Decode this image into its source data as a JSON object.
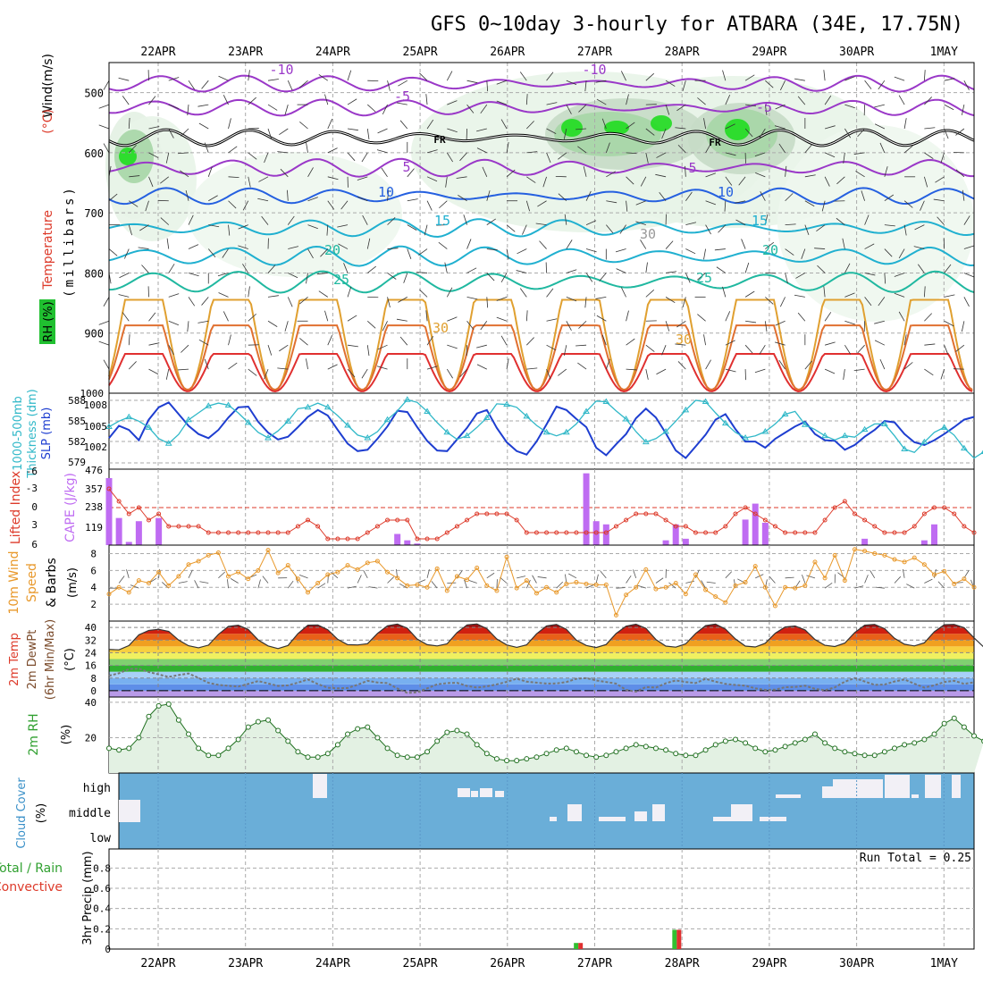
{
  "title": "GFS 0~10day 3-hourly for ATBARA (34E, 17.75N)",
  "dates": [
    "22APR",
    "23APR",
    "24APR",
    "25APR",
    "26APR",
    "27APR",
    "28APR",
    "29APR",
    "30APR",
    "1MAY"
  ],
  "colors": {
    "wind_label": "#000000",
    "temp_label": "#dd3a2a",
    "rh_label": "#20c030",
    "bar_purple": "#bf6cf2",
    "lifted_red": "#dd3a2a",
    "orange": "#e8982a",
    "blue": "#1e3ed0",
    "cyan": "#30b8c8",
    "green": "#30a030",
    "cloud_blue": "#6aaed8",
    "cloud_white": "#f2f0f6",
    "pressure_purple": "#9a38c8",
    "contour_blue": "#2560e0",
    "contour_cyan": "#20b0d0",
    "contour_teal": "#20b8a0",
    "contour_orange": "#e0a030",
    "contour_red": "#e03030"
  },
  "chart_data": [
    {
      "id": "upper-air",
      "type": "contour",
      "ylabel_parts": [
        "Wind",
        "(m/s)",
        "(°C)",
        "Temperature",
        "RH (%)",
        "(millibars)"
      ],
      "y_ticks": [
        500,
        600,
        700,
        800,
        900,
        1000
      ],
      "ylim": [
        1000,
        450
      ],
      "isotherm_labels": [
        "-10",
        "-10",
        "-5",
        "-5",
        "5",
        "5",
        "10",
        "10",
        "15",
        "15",
        "20",
        "20",
        "25",
        "25",
        "30",
        "30",
        "30",
        "FR",
        "FR"
      ]
    },
    {
      "id": "thickness-slp",
      "type": "line",
      "ylabel_left": "1000-500mb Thickness (dm)",
      "ylabel_right": "SLP (mb)",
      "left_ticks": [
        "588",
        "585",
        "582",
        "579"
      ],
      "right_ticks": [
        "1008",
        "1005",
        "1002"
      ],
      "series": [
        {
          "name": "SLP (mb)",
          "values": [
            1003.4,
            1005.2,
            1004.6,
            1003.1,
            1006.1,
            1007.9,
            1008.6,
            1006.9,
            1005.2,
            1004.0,
            1003.4,
            1004.6,
            1006.4,
            1007.9,
            1008.0,
            1005.8,
            1004.2,
            1003.2,
            1003.6,
            1005.0,
            1006.5,
            1007.5,
            1006.7,
            1004.6,
            1002.6,
            1001.5,
            1001.7,
            1003.3,
            1005.1,
            1007.4,
            1007.2,
            1005.0,
            1003.0,
            1001.6,
            1001.5,
            1003.2,
            1004.9,
            1007.0,
            1007.5,
            1004.9,
            1002.8,
            1001.5,
            1001.0,
            1002.9,
            1005.4,
            1008.0,
            1007.5,
            1006.2,
            1005.0,
            1002.0,
            1000.9,
            1002.5,
            1004.0,
            1006.3,
            1007.7,
            1006.4,
            1004.1,
            1001.6,
            1000.5,
            1002.2,
            1003.9,
            1006.1,
            1006.9,
            1004.7,
            1002.9,
            1002.9,
            1002.0,
            1003.3,
            1004.2,
            1005.1,
            1005.8,
            1004.0,
            1003.1,
            1003.0,
            1001.7,
            1002.4,
            1003.6,
            1004.6,
            1005.9,
            1005.7,
            1004.0,
            1002.8,
            1002.4,
            1003.1,
            1004.0,
            1005.0,
            1006.1,
            1006.5
          ]
        },
        {
          "name": "Thickness (dm)",
          "values": [
            584.2,
            585.0,
            585.6,
            585.0,
            584.1,
            582.5,
            581.8,
            583.1,
            585.2,
            586.2,
            587.2,
            587.6,
            587.3,
            586.2,
            584.8,
            583.4,
            582.6,
            583.6,
            585.0,
            586.8,
            587.0,
            587.6,
            587.0,
            585.8,
            584.4,
            583.0,
            582.6,
            583.5,
            585.2,
            586.5,
            588.1,
            587.7,
            586.4,
            584.8,
            583.4,
            582.4,
            582.9,
            584.1,
            585.5,
            587.5,
            587.4,
            587.0,
            585.7,
            584.4,
            583.4,
            582.9,
            583.4,
            584.6,
            586.4,
            587.9,
            587.8,
            586.5,
            585.3,
            583.5,
            582.0,
            582.5,
            583.5,
            585.0,
            586.6,
            588.0,
            587.8,
            586.2,
            584.7,
            583.4,
            582.6,
            582.9,
            583.5,
            584.6,
            586.0,
            586.4,
            584.5,
            583.8,
            582.9,
            582.3,
            582.9,
            582.7,
            583.8,
            584.6,
            584.6,
            582.9,
            581.0,
            580.5,
            582.0,
            583.4,
            584.1,
            583.0,
            581.1,
            579.7,
            580.6
          ]
        }
      ]
    },
    {
      "id": "cape-li",
      "type": "bar+line",
      "ylabel_left": "Lifted Index",
      "ylabel_right": "CAPE (J/kg)",
      "left_ticks": [
        "-6",
        "-3",
        "0",
        "3",
        "6"
      ],
      "right_ticks": [
        "476",
        "357",
        "238",
        "119"
      ],
      "cape": [
        420,
        170,
        20,
        150,
        0,
        170,
        0,
        0,
        0,
        0,
        0,
        0,
        0,
        0,
        0,
        0,
        0,
        0,
        0,
        0,
        0,
        0,
        0,
        0,
        0,
        0,
        0,
        0,
        0,
        70,
        30,
        10,
        0,
        0,
        0,
        0,
        0,
        0,
        0,
        0,
        0,
        0,
        0,
        0,
        0,
        0,
        0,
        0,
        0,
        0,
        0,
        0,
        0,
        0,
        0,
        0,
        0,
        0,
        0,
        0,
        0,
        0,
        0,
        0,
        0,
        0,
        0,
        0,
        0,
        0,
        0,
        0,
        0,
        0,
        0,
        0,
        0,
        0,
        0,
        0,
        0,
        0,
        0,
        0,
        0,
        0,
        0,
        0
      ],
      "cape_extra": {
        "index": [
          "48",
          "49",
          "50",
          "51",
          "55",
          "56",
          "57",
          "58",
          "64",
          "65",
          "66",
          "67",
          "68",
          "75",
          "76",
          "82",
          "83"
        ],
        "value": [
          450,
          150,
          130,
          0,
          0,
          30,
          130,
          40,
          160,
          260,
          140,
          0,
          0,
          0,
          40,
          30,
          130
        ]
      },
      "lifted_index": [
        -3,
        -1,
        1,
        0,
        2,
        1,
        3,
        3,
        3,
        3,
        4,
        4,
        4,
        4,
        4,
        4,
        4,
        4,
        4,
        3,
        2,
        3,
        5,
        5,
        5,
        5,
        4,
        3,
        2,
        2,
        2,
        5,
        5,
        5,
        4,
        3,
        2,
        1,
        1,
        1,
        1,
        2,
        4,
        4,
        4,
        4,
        4,
        4,
        4,
        4,
        4,
        3,
        2,
        1,
        1,
        1,
        2,
        3,
        3,
        4,
        4,
        4,
        3,
        1,
        0,
        1,
        2,
        3,
        4,
        4,
        4,
        4,
        2,
        0,
        -1,
        1,
        2,
        3,
        4,
        4,
        4,
        3,
        1,
        0,
        0,
        1,
        3,
        4
      ]
    },
    {
      "id": "wind10m",
      "type": "line",
      "ylabel": "10m Wind Speed (m/s) & Barbs",
      "y_ticks": [
        "8",
        "6",
        "4",
        "2"
      ],
      "ylim": [
        0,
        9
      ],
      "values": [
        3.2,
        4.0,
        3.4,
        4.8,
        4.5,
        5.8,
        4.2,
        5.3,
        6.7,
        7.1,
        7.8,
        8.1,
        5.3,
        5.8,
        5.0,
        6.0,
        8.4,
        5.7,
        6.6,
        5.0,
        3.4,
        4.5,
        5.5,
        5.8,
        6.6,
        6.1,
        6.9,
        7.1,
        5.8,
        5.1,
        4.2,
        4.3,
        4.0,
        6.2,
        3.6,
        5.3,
        4.9,
        6.3,
        4.2,
        3.6,
        7.6,
        3.9,
        4.8,
        3.3,
        4.0,
        3.4,
        4.4,
        4.6,
        4.4,
        4.3,
        4.3,
        0.7,
        3.1,
        4.0,
        6.1,
        3.8,
        4.0,
        4.5,
        3.2,
        5.5,
        3.7,
        2.9,
        2.2,
        4.2,
        4.6,
        6.5,
        4.0,
        1.8,
        4.0,
        3.9,
        4.2,
        7.0,
        5.1,
        7.8,
        4.8,
        8.5,
        8.3,
        8.0,
        7.8,
        7.3,
        7.0,
        7.5,
        6.7,
        5.5,
        5.9,
        4.4,
        5.0,
        4.0
      ]
    },
    {
      "id": "temp2m",
      "type": "area",
      "ylabel_parts": [
        "2m Temp",
        "2m DewPt",
        "(6hr Min/Max)",
        "(°C)"
      ],
      "y_ticks": [
        "40",
        "32",
        "24",
        "16",
        "8",
        "0"
      ],
      "ylim": [
        -4,
        44
      ],
      "temp": [
        26.1,
        25.8,
        28.5,
        35.3,
        38.1,
        38.8,
        37.5,
        32.0,
        28.4,
        27.1,
        28.8,
        35.6,
        40.6,
        41.4,
        38.7,
        32.1,
        28.3,
        26.6,
        28.6,
        36.1,
        41.4,
        41.5,
        38.5,
        32.5,
        29.1,
        28.9,
        29.7,
        36.2,
        41.0,
        42.1,
        39.5,
        32.6,
        29.1,
        28.3,
        29.6,
        36.7,
        41.6,
        42.2,
        39.2,
        32.7,
        28.9,
        27.4,
        29.0,
        35.9,
        40.9,
        41.9,
        38.8,
        32.0,
        28.6,
        27.3,
        29.2,
        36.1,
        40.8,
        42.0,
        39.4,
        32.3,
        28.2,
        27.5,
        29.6,
        36.2,
        41.1,
        42.1,
        38.9,
        32.7,
        28.2,
        27.6,
        30.0,
        36.3,
        40.3,
        40.9,
        38.4,
        32.3,
        28.7,
        27.9,
        30.1,
        36.8,
        41.4,
        41.9,
        39.2,
        33.1,
        29.4,
        28.3,
        30.3,
        37.2,
        41.7,
        41.9,
        39.8,
        33.4,
        27.4,
        30.1
      ],
      "dewpoint": [
        9.5,
        11.0,
        13.7,
        13.9,
        11.8,
        10.3,
        8.7,
        9.9,
        10.9,
        8.1,
        5.0,
        3.7,
        3.1,
        2.6,
        4.3,
        6.1,
        4.6,
        3.0,
        3.4,
        5.1,
        7.1,
        4.2,
        1.9,
        1.5,
        1.7,
        3.8,
        6.3,
        5.2,
        4.8,
        1.4,
        -1.4,
        -1.0,
        1.5,
        4.0,
        4.8,
        5.0,
        3.0,
        2.0,
        2.7,
        4.0,
        5.6,
        7.6,
        5.7,
        5.1,
        4.5,
        4.6,
        5.5,
        7.5,
        8.0,
        6.5,
        5.5,
        4.5,
        0.5,
        -0.6,
        2.3,
        2.0,
        4.7,
        6.5,
        5.5,
        4.8,
        7.5,
        5.7,
        4.3,
        3.6,
        3.2,
        1.5,
        0.5,
        0.7,
        2.2,
        2.4,
        3.2,
        1.2,
        0.3,
        2.1,
        5.7,
        8.0,
        5.8,
        3.7,
        3.9,
        5.8,
        7.1,
        4.4,
        2.0,
        3.4,
        5.5,
        6.3,
        4.3,
        5.3
      ]
    },
    {
      "id": "rh2m",
      "type": "area",
      "ylabel": "2m RH (%)",
      "y_ticks": [
        "40",
        "20"
      ],
      "ylim": [
        0,
        43
      ],
      "values": [
        14,
        13,
        14,
        20,
        32,
        38,
        39,
        30,
        22,
        14,
        10,
        10,
        14,
        19,
        26,
        29,
        30,
        24,
        18,
        12,
        9,
        9,
        11,
        16,
        22,
        25,
        26,
        20,
        14,
        10,
        9,
        9,
        12,
        18,
        23,
        24,
        22,
        16,
        11,
        8,
        7,
        7,
        8,
        9,
        11,
        13,
        14,
        12,
        10,
        9,
        10,
        12,
        14,
        16,
        15,
        14,
        13,
        11,
        10,
        10,
        13,
        16,
        18,
        19,
        17,
        14,
        12,
        13,
        15,
        17,
        19,
        22,
        17,
        14,
        12,
        11,
        10,
        10,
        12,
        14,
        16,
        17,
        19,
        22,
        28,
        31,
        26,
        21,
        18
      ]
    },
    {
      "id": "cloud",
      "type": "heatmap",
      "ylabel": "Cloud Cover (%)",
      "y_ticks": [
        "high",
        "middle",
        "low"
      ]
    },
    {
      "id": "precip",
      "type": "bar",
      "ylabel": "3hr Precip (mm)",
      "ylabel_extra": [
        "Total / Rain",
        "Convective"
      ],
      "y_ticks": [
        "0.8",
        "0.6",
        "0.4",
        "0.2",
        "0"
      ],
      "ylim": [
        0,
        0.9
      ],
      "run_total_label": "Run Total = 0.25",
      "bars": [
        {
          "t": 47.2,
          "total": 0.06,
          "conv": 0.06
        },
        {
          "t": 57.1,
          "total": 0.19,
          "conv": 0.19
        }
      ]
    }
  ]
}
